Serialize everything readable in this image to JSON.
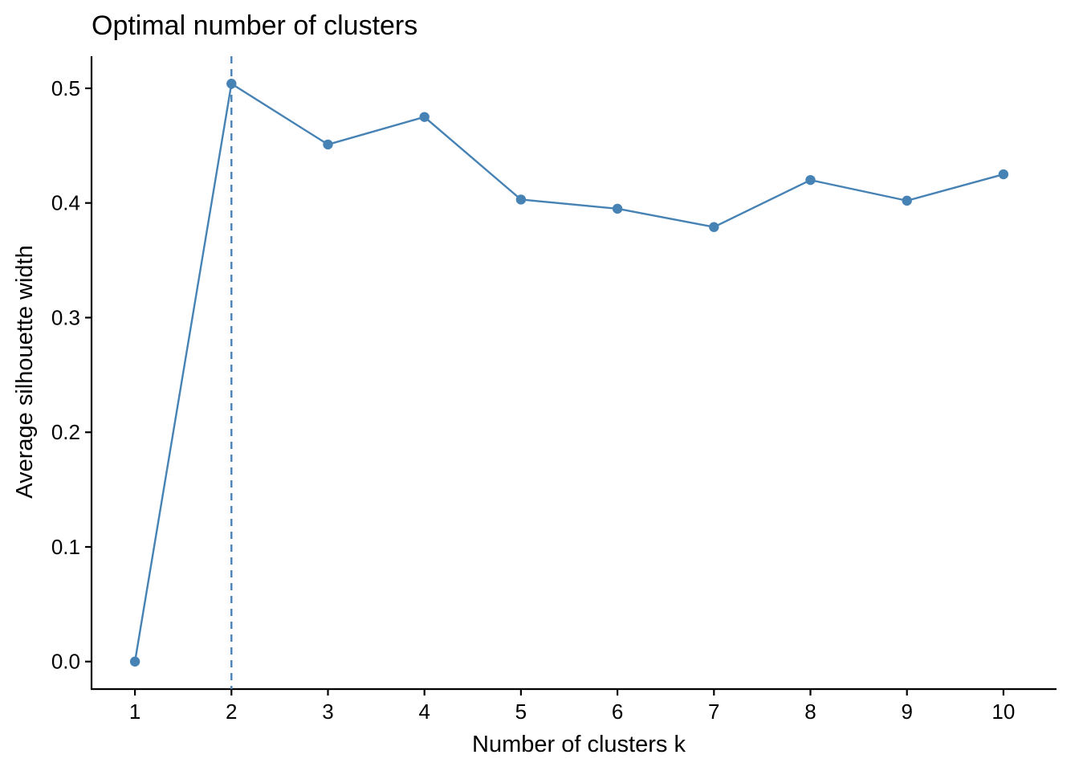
{
  "chart_data": {
    "type": "line",
    "title": "Optimal number of clusters",
    "xlabel": "Number of clusters k",
    "ylabel": "Average silhouette width",
    "x": [
      1,
      2,
      3,
      4,
      5,
      6,
      7,
      8,
      9,
      10
    ],
    "x_tick_labels": [
      "1",
      "2",
      "3",
      "4",
      "5",
      "6",
      "7",
      "8",
      "9",
      "10"
    ],
    "y_ticks": [
      0.0,
      0.1,
      0.2,
      0.3,
      0.4,
      0.5
    ],
    "y_tick_labels": [
      "0.0",
      "0.1",
      "0.2",
      "0.3",
      "0.4",
      "0.5"
    ],
    "series": [
      {
        "values": [
          0.0,
          0.504,
          0.451,
          0.475,
          0.403,
          0.395,
          0.379,
          0.42,
          0.402,
          0.425
        ],
        "color": "#4682B4"
      }
    ],
    "optimal_k": 2,
    "optimal_line_style": "dashed",
    "xlim": [
      0.55,
      10.55
    ],
    "ylim": [
      -0.024,
      0.528
    ],
    "grid": false,
    "legend": "none"
  }
}
